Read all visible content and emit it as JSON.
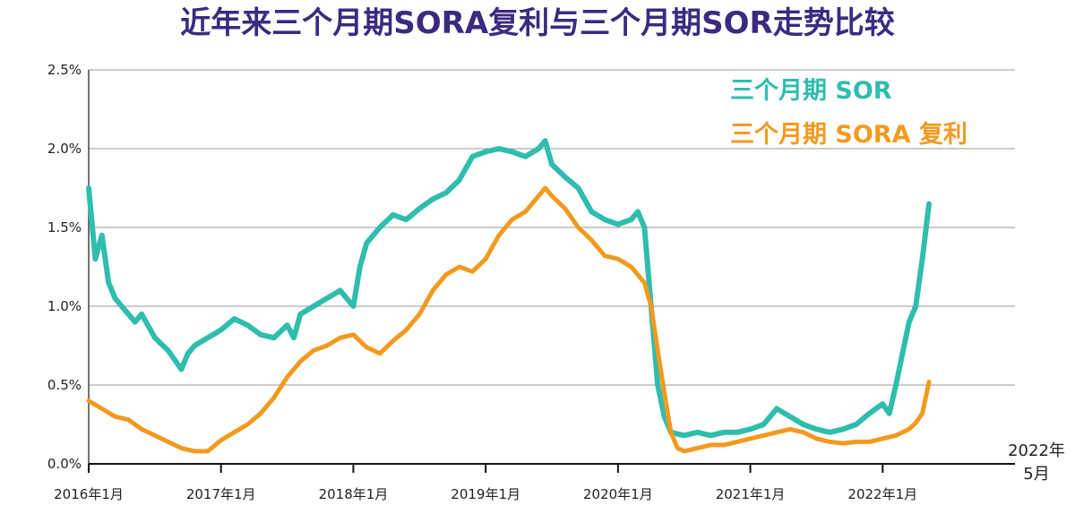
{
  "chart_data": {
    "type": "line",
    "title": "近年来三个月期SORA复利与三个月期SOR走势比较",
    "xlabel": "",
    "ylabel": "",
    "ylim": [
      0,
      2.5
    ],
    "grid": true,
    "legend_position": "top-right",
    "x_ticks": [
      "2016年1月",
      "2017年1月",
      "2018年1月",
      "2019年1月",
      "2020年1月",
      "2021年1月",
      "2022年1月"
    ],
    "y_ticks": [
      "0.0%",
      "0.5%",
      "1.0%",
      "1.5%",
      "2.0%",
      "2.5%"
    ],
    "end_label": [
      "2022年",
      "5月"
    ],
    "series": [
      {
        "name": "三个月期 SOR",
        "color": "#2fbdad",
        "x": [
          2016.0,
          2016.05,
          2016.1,
          2016.15,
          2016.2,
          2016.25,
          2016.3,
          2016.35,
          2016.4,
          2016.5,
          2016.6,
          2016.7,
          2016.75,
          2016.8,
          2016.9,
          2017.0,
          2017.1,
          2017.2,
          2017.3,
          2017.4,
          2017.5,
          2017.55,
          2017.6,
          2017.7,
          2017.8,
          2017.9,
          2018.0,
          2018.05,
          2018.1,
          2018.2,
          2018.3,
          2018.4,
          2018.5,
          2018.6,
          2018.7,
          2018.8,
          2018.9,
          2019.0,
          2019.1,
          2019.2,
          2019.3,
          2019.4,
          2019.45,
          2019.5,
          2019.6,
          2019.7,
          2019.8,
          2019.9,
          2020.0,
          2020.1,
          2020.15,
          2020.2,
          2020.25,
          2020.3,
          2020.35,
          2020.4,
          2020.5,
          2020.6,
          2020.7,
          2020.8,
          2020.9,
          2021.0,
          2021.1,
          2021.2,
          2021.3,
          2021.4,
          2021.5,
          2021.6,
          2021.7,
          2021.8,
          2021.9,
          2022.0,
          2022.05,
          2022.1,
          2022.15,
          2022.2,
          2022.25,
          2022.3,
          2022.35
        ],
        "values": [
          1.75,
          1.3,
          1.45,
          1.15,
          1.05,
          1.0,
          0.95,
          0.9,
          0.95,
          0.8,
          0.72,
          0.6,
          0.7,
          0.75,
          0.8,
          0.85,
          0.92,
          0.88,
          0.82,
          0.8,
          0.88,
          0.8,
          0.95,
          1.0,
          1.05,
          1.1,
          1.0,
          1.25,
          1.4,
          1.5,
          1.58,
          1.55,
          1.62,
          1.68,
          1.72,
          1.8,
          1.95,
          1.98,
          2.0,
          1.98,
          1.95,
          2.0,
          2.05,
          1.9,
          1.82,
          1.75,
          1.6,
          1.55,
          1.52,
          1.55,
          1.6,
          1.5,
          1.0,
          0.5,
          0.3,
          0.2,
          0.18,
          0.2,
          0.18,
          0.2,
          0.2,
          0.22,
          0.25,
          0.35,
          0.3,
          0.25,
          0.22,
          0.2,
          0.22,
          0.25,
          0.32,
          0.38,
          0.32,
          0.5,
          0.7,
          0.9,
          1.0,
          1.3,
          1.65
        ]
      },
      {
        "name": "三个月期 SORA 复利",
        "color": "#f29a1f",
        "x": [
          2016.0,
          2016.1,
          2016.2,
          2016.3,
          2016.4,
          2016.5,
          2016.6,
          2016.7,
          2016.8,
          2016.9,
          2017.0,
          2017.1,
          2017.2,
          2017.3,
          2017.4,
          2017.5,
          2017.6,
          2017.7,
          2017.8,
          2017.9,
          2018.0,
          2018.1,
          2018.2,
          2018.3,
          2018.4,
          2018.5,
          2018.6,
          2018.7,
          2018.8,
          2018.9,
          2019.0,
          2019.1,
          2019.2,
          2019.3,
          2019.4,
          2019.45,
          2019.5,
          2019.6,
          2019.7,
          2019.8,
          2019.9,
          2020.0,
          2020.1,
          2020.15,
          2020.2,
          2020.25,
          2020.3,
          2020.35,
          2020.4,
          2020.45,
          2020.5,
          2020.6,
          2020.7,
          2020.8,
          2020.9,
          2021.0,
          2021.1,
          2021.2,
          2021.3,
          2021.4,
          2021.5,
          2021.6,
          2021.7,
          2021.8,
          2021.9,
          2022.0,
          2022.1,
          2022.2,
          2022.25,
          2022.3,
          2022.35
        ],
        "values": [
          0.4,
          0.35,
          0.3,
          0.28,
          0.22,
          0.18,
          0.14,
          0.1,
          0.08,
          0.08,
          0.15,
          0.2,
          0.25,
          0.32,
          0.42,
          0.55,
          0.65,
          0.72,
          0.75,
          0.8,
          0.82,
          0.74,
          0.7,
          0.78,
          0.85,
          0.95,
          1.1,
          1.2,
          1.25,
          1.22,
          1.3,
          1.45,
          1.55,
          1.6,
          1.7,
          1.75,
          1.7,
          1.62,
          1.5,
          1.42,
          1.32,
          1.3,
          1.25,
          1.2,
          1.15,
          1.0,
          0.72,
          0.45,
          0.2,
          0.1,
          0.08,
          0.1,
          0.12,
          0.12,
          0.14,
          0.16,
          0.18,
          0.2,
          0.22,
          0.2,
          0.16,
          0.14,
          0.13,
          0.14,
          0.14,
          0.16,
          0.18,
          0.22,
          0.26,
          0.32,
          0.52
        ]
      }
    ]
  }
}
